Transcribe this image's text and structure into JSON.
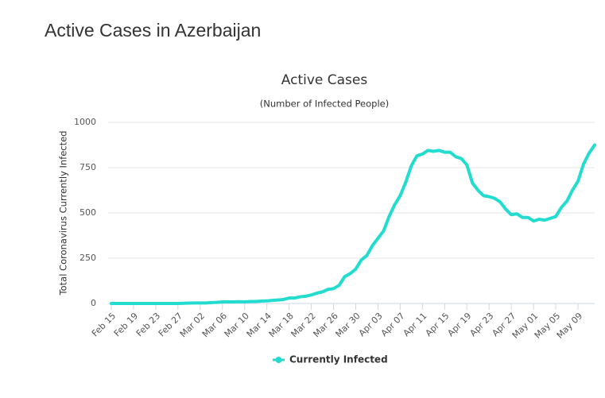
{
  "page_title": "Active Cases in Azerbaijan",
  "chart_data": {
    "type": "line",
    "title": "Active Cases",
    "subtitle": "(Number of Infected People)",
    "y_label": "Total Coronavirus Currently Infected",
    "categories": [
      "Feb 15",
      null,
      null,
      null,
      "Feb 19",
      null,
      null,
      null,
      "Feb 23",
      null,
      null,
      null,
      "Feb 27",
      null,
      null,
      null,
      "Mar 02",
      null,
      null,
      null,
      "Mar 06",
      null,
      null,
      null,
      "Mar 10",
      null,
      null,
      null,
      "Mar 14",
      null,
      null,
      null,
      "Mar 18",
      null,
      null,
      null,
      "Mar 22",
      null,
      null,
      null,
      "Mar 26",
      null,
      null,
      null,
      "Mar 30",
      null,
      null,
      null,
      "Apr 03",
      null,
      null,
      null,
      "Apr 07",
      null,
      null,
      null,
      "Apr 11",
      null,
      null,
      null,
      "Apr 15",
      null,
      null,
      null,
      "Apr 19",
      null,
      null,
      null,
      "Apr 23",
      null,
      null,
      null,
      "Apr 27",
      null,
      null,
      null,
      "May 01",
      null,
      null,
      null,
      "May 05",
      null,
      null,
      null,
      "May 09",
      null,
      null,
      null
    ],
    "series": [
      {
        "name": "Currently Infected",
        "color": "#22dccf",
        "values": [
          0,
          0,
          0,
          0,
          0,
          0,
          0,
          0,
          0,
          0,
          0,
          0,
          0,
          1,
          2,
          3,
          3,
          3,
          5,
          6,
          9,
          9,
          9,
          10,
          9,
          11,
          11,
          13,
          14,
          17,
          19,
          22,
          30,
          30,
          37,
          40,
          47,
          57,
          64,
          78,
          82,
          100,
          148,
          165,
          190,
          240,
          265,
          320,
          360,
          400,
          480,
          545,
          595,
          670,
          760,
          815,
          825,
          845,
          840,
          845,
          835,
          835,
          810,
          800,
          765,
          665,
          625,
          595,
          590,
          580,
          560,
          520,
          490,
          495,
          475,
          475,
          455,
          465,
          460,
          470,
          480,
          530,
          565,
          625,
          675,
          770,
          830,
          875
        ]
      }
    ],
    "ylim": [
      0,
      1000
    ],
    "yticks": [
      0,
      250,
      500,
      750,
      1000
    ],
    "grid": true,
    "legend": "bottom"
  }
}
